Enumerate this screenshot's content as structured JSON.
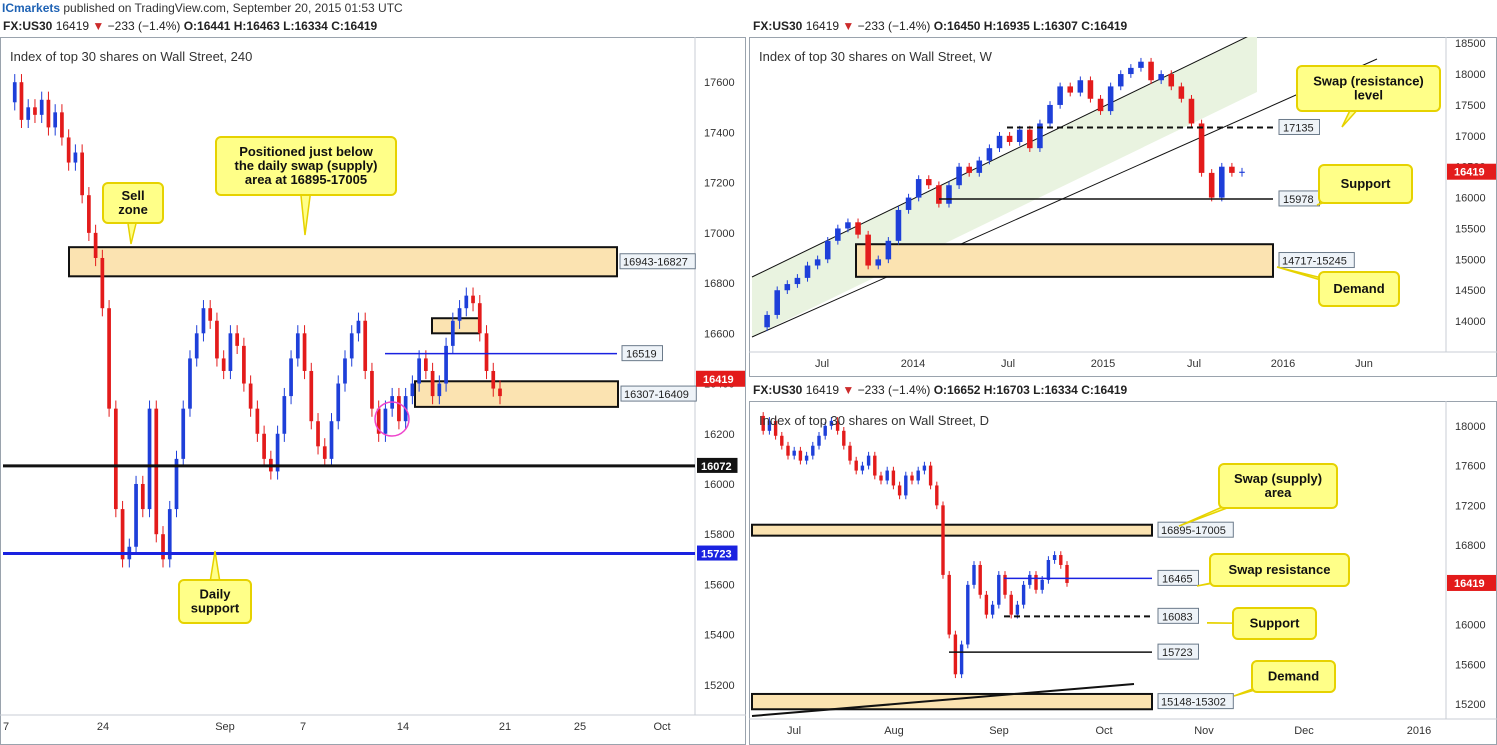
{
  "header": {
    "brand": "ICmarkets",
    "published": "published on TradingView.com, September 20, 2015 01:53 UTC"
  },
  "colors": {
    "bull": "#1e3fd9",
    "bear": "#e31b1b",
    "zone_fill": "#fbe3b1",
    "callout_fill": "#ffff88",
    "callout_border": "#e6d200",
    "price_tag": "#e31b1b",
    "blue_line": "#1a22e0",
    "channel_fill": "#e9f3e0"
  },
  "panels": [
    {
      "id": "h4",
      "ohlc": {
        "symbol": "FX:US30",
        "last": "16419",
        "arrow": "▼",
        "change": "−233 (−1.4%)",
        "o": "O:16441",
        "h": "H:16463",
        "l": "L:16334",
        "c": "C:16419"
      },
      "title": "Index of top 30 shares on Wall Street, 240",
      "price_tag": "16419",
      "chart_data": {
        "type": "candlestick",
        "timeframe": "240",
        "ylim": [
          15080,
          17780
        ],
        "y_ticks": [
          15200,
          15400,
          15600,
          15800,
          16000,
          16200,
          16400,
          16600,
          16800,
          17000,
          17200,
          17400,
          17600
        ],
        "x_ticks": [
          "7",
          "24",
          "Sep",
          "7",
          "14",
          "21",
          "25",
          "Oct"
        ],
        "series_path": [
          17520,
          17600,
          17450,
          17500,
          17470,
          17530,
          17420,
          17480,
          17380,
          17280,
          17320,
          17150,
          17000,
          16900,
          16700,
          16300,
          15900,
          15700,
          15750,
          16000,
          15900,
          16300,
          15800,
          15700,
          15900,
          16100,
          16300,
          16500,
          16600,
          16700,
          16650,
          16500,
          16450,
          16600,
          16550,
          16400,
          16300,
          16200,
          16100,
          16050,
          16200,
          16350,
          16500,
          16600,
          16450,
          16250,
          16150,
          16100,
          16250,
          16400,
          16500,
          16600,
          16650,
          16450,
          16300,
          16200,
          16300,
          16350,
          16250,
          16350,
          16400,
          16500,
          16450,
          16350,
          16400,
          16550,
          16650,
          16700,
          16750,
          16720,
          16600,
          16450,
          16380,
          16350
        ],
        "zones": [
          {
            "label": "16943-16827",
            "low": 16827,
            "high": 16943
          },
          {
            "label": "16307-16409",
            "low": 16307,
            "high": 16409
          },
          {
            "label": "",
            "low": 16600,
            "high": 16660
          }
        ],
        "levels": [
          {
            "label": "16519",
            "value": 16519,
            "style": "blue-thin"
          },
          {
            "label": "16072",
            "value": 16072,
            "style": "black-thick"
          },
          {
            "label": "15723",
            "value": 15723,
            "style": "blue-thick"
          }
        ],
        "callouts": [
          {
            "text": "Positioned just below\nthe daily swap (supply)\narea at 16895-17005"
          },
          {
            "text": "Sell\nzone"
          },
          {
            "text": "Daily\nsupport"
          }
        ]
      }
    },
    {
      "id": "weekly",
      "ohlc": {
        "symbol": "FX:US30",
        "last": "16419",
        "arrow": "▼",
        "change": "−233 (−1.4%)",
        "o": "O:16450",
        "h": "H:16935",
        "l": "L:16307",
        "c": "C:16419"
      },
      "title": "Index of top 30 shares on Wall Street, W",
      "price_tag": "16419",
      "chart_data": {
        "type": "candlestick",
        "timeframe": "W",
        "ylim": [
          13500,
          18600
        ],
        "y_ticks": [
          14000,
          14500,
          15000,
          15500,
          16000,
          16500,
          17000,
          17500,
          18000,
          18500
        ],
        "x_ticks": [
          "Jul",
          "2014",
          "Jul",
          "2015",
          "Jul",
          "2016",
          "Jun"
        ],
        "series_path": [
          13900,
          14100,
          14500,
          14600,
          14700,
          14900,
          15000,
          15300,
          15500,
          15600,
          15400,
          14900,
          15000,
          15300,
          15800,
          16000,
          16300,
          16200,
          15900,
          16200,
          16500,
          16400,
          16600,
          16800,
          17000,
          16900,
          17100,
          16800,
          17200,
          17500,
          17800,
          17700,
          17900,
          17600,
          17400,
          17800,
          18000,
          18100,
          18200,
          17900,
          18000,
          17800,
          17600,
          17200,
          16400,
          16000,
          16500,
          16400,
          16419
        ],
        "zones": [
          {
            "label": "14717-15245",
            "low": 14717,
            "high": 15245
          }
        ],
        "levels": [
          {
            "label": "17135",
            "value": 17135,
            "style": "black-dashed"
          },
          {
            "label": "15978",
            "value": 15978,
            "style": "black-thin"
          }
        ],
        "callouts": [
          {
            "text": "Swap (resistance)\nlevel"
          },
          {
            "text": "Support"
          },
          {
            "text": "Demand"
          }
        ]
      }
    },
    {
      "id": "daily",
      "ohlc": {
        "symbol": "FX:US30",
        "last": "16419",
        "arrow": "▼",
        "change": "−233 (−1.4%)",
        "o": "O:16652",
        "h": "H:16703",
        "l": "L:16334",
        "c": "C:16419"
      },
      "title": "Index of top 30 shares on Wall Street, D",
      "price_tag": "16419",
      "chart_data": {
        "type": "candlestick",
        "timeframe": "D",
        "ylim": [
          15050,
          18250
        ],
        "y_ticks": [
          15200,
          15600,
          16000,
          16400,
          16800,
          17200,
          17600,
          18000
        ],
        "x_ticks": [
          "Jul",
          "Aug",
          "Sep",
          "Oct",
          "Nov",
          "Dec",
          "2016"
        ],
        "series_path": [
          18100,
          17950,
          18050,
          17900,
          17800,
          17700,
          17750,
          17650,
          17700,
          17800,
          17900,
          18000,
          18050,
          17950,
          17800,
          17650,
          17550,
          17600,
          17700,
          17500,
          17450,
          17550,
          17400,
          17300,
          17500,
          17450,
          17550,
          17600,
          17400,
          17200,
          16500,
          15900,
          15500,
          15800,
          16400,
          16600,
          16300,
          16100,
          16200,
          16500,
          16300,
          16100,
          16200,
          16400,
          16500,
          16350,
          16450,
          16650,
          16700,
          16600,
          16419
        ],
        "zones": [
          {
            "label": "16895-17005",
            "low": 16895,
            "high": 17005
          },
          {
            "label": "15148-15302",
            "low": 15148,
            "high": 15302
          }
        ],
        "levels": [
          {
            "label": "16465",
            "value": 16465,
            "style": "blue-thin"
          },
          {
            "label": "16083",
            "value": 16083,
            "style": "black-dashed"
          },
          {
            "label": "15723",
            "value": 15723,
            "style": "black-thin"
          }
        ],
        "callouts": [
          {
            "text": "Swap (supply)\narea"
          },
          {
            "text": "Swap resistance"
          },
          {
            "text": "Support"
          },
          {
            "text": "Demand"
          }
        ]
      }
    }
  ]
}
